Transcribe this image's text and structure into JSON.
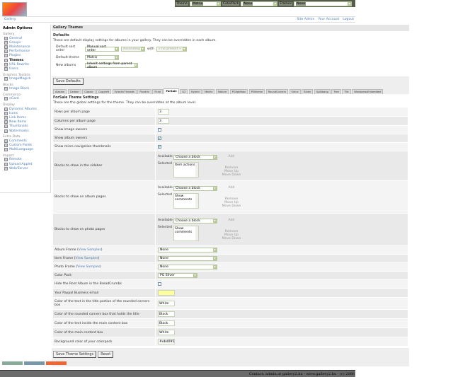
{
  "topbar": {
    "theme_label": "Theme",
    "theme_value": "Matrix",
    "colorpack_label": "ColorPack",
    "colorpack_value": "None",
    "frames_label": "Frames",
    "frames_value": "None"
  },
  "logo": "Gallery",
  "nav": {
    "breadcrumb": "Gallery",
    "links": [
      "Site Admin",
      "Your Account",
      "Logout"
    ]
  },
  "sidebar": {
    "title": "Admin Options",
    "groups": [
      {
        "name": "Gallery",
        "items": [
          "General",
          "Groups",
          "Maintenance",
          "Performance",
          "Plugins",
          "Themes",
          "URL Rewrite",
          "Users"
        ]
      },
      {
        "name": "Graphics Toolkits",
        "items": [
          "ImageMagick"
        ]
      },
      {
        "name": "Blocks",
        "items": [
          "Image Block"
        ]
      },
      {
        "name": "Commerce",
        "items": [
          "eCard"
        ]
      },
      {
        "name": "Display",
        "items": [
          "Dynamic Albums",
          "Icons",
          "Link Items",
          "New Items",
          "Thumbnails",
          "Watermarks"
        ]
      },
      {
        "name": "Extra Data",
        "items": [
          "Comments",
          "Custom Fields",
          "MultiLanguage"
        ]
      },
      {
        "name": "Import",
        "items": [
          "Remote",
          "Upload Applet",
          "Web/Server"
        ]
      }
    ],
    "current": "Themes"
  },
  "page": {
    "title": "Gallery Themes",
    "defaults_title": "Defaults",
    "defaults_desc": "These are default display settings for albums in your gallery. They can be overridden in each album.",
    "sort_label": "Default sort order",
    "sort_value": "Manual sort order",
    "sort_dir": "Ascending",
    "with_label": "with",
    "presort": "« no presort »",
    "theme_label": "Default theme",
    "theme_value": "Matrix",
    "new_label": "New albums",
    "new_value": "Inherit settings from parent album",
    "save_defaults": "Save Defaults"
  },
  "tabs": [
    "Ajaxian",
    "Carbon",
    "Classic",
    "Copyleft",
    "EclecticThreads",
    "Floatrix",
    "Fluid",
    "ForSale",
    "G3",
    "Hybrid",
    "Matrix",
    "Nature",
    "PGlightbox",
    "PGtheme",
    "RoundCorners",
    "Siriux",
    "Slider",
    "Splitbang",
    "Tree",
    "Tile",
    "WordpressEmbedded"
  ],
  "active_tab": "ForSale",
  "theme": {
    "title": "ForSale Theme Settings",
    "desc": "These are the global settings for the theme. They can be overridden at the album level.",
    "rows_label": "Rows per album page",
    "rows_value": "3",
    "cols_label": "Columns per album page",
    "cols_value": "3",
    "owners_label": "Show image owners",
    "owners_checked": false,
    "album_owners_label": "Show album owners",
    "album_owners_checked": true,
    "micro_label": "Show micro navigation thumbnails",
    "micro_checked": true,
    "blocks": [
      {
        "label": "Blocks to show in the sidebar",
        "selected": "Item actions"
      },
      {
        "label": "Blocks to show on album pages",
        "selected": "Show comments"
      },
      {
        "label": "Blocks to show on photo pages",
        "selected": "Show comments"
      }
    ],
    "available_label": "Available",
    "selected_label": "Selected",
    "choose": "Choose a block",
    "add": "Add",
    "remove": "Remove",
    "up": "Move Up",
    "down": "Move Down",
    "view_samples": "View Samples",
    "album_frame_label": "Album Frame",
    "album_frame": "None",
    "item_frame_label": "Item Frame",
    "item_frame": "None",
    "photo_frame_label": "Photo Frame",
    "photo_frame": "None",
    "colorpack_label": "Color Pack",
    "colorpack": "PG Silver",
    "hide_root_label": "Hide the Root Album in the BreadCrumbs",
    "hide_root": false,
    "paypal_label": "Your Paypal Business email",
    "paypal": "",
    "c1_label": "Color of the text in the title portion of the rounded corners box",
    "c1": "White",
    "c2_label": "Color of the rounded corners box that holds the title",
    "c2": "Black",
    "c3_label": "Color of the text inside the main content box",
    "c3": "Black",
    "c4_label": "Color of the main content box",
    "c4": "White",
    "c5_label": "Background color of your colorpack",
    "c5": "#ebd095",
    "save": "Save Theme Settings",
    "reset": "Reset"
  },
  "footer": "Contact: admin at gallery2.hu - www.gallery2.hu - (c) 2006"
}
